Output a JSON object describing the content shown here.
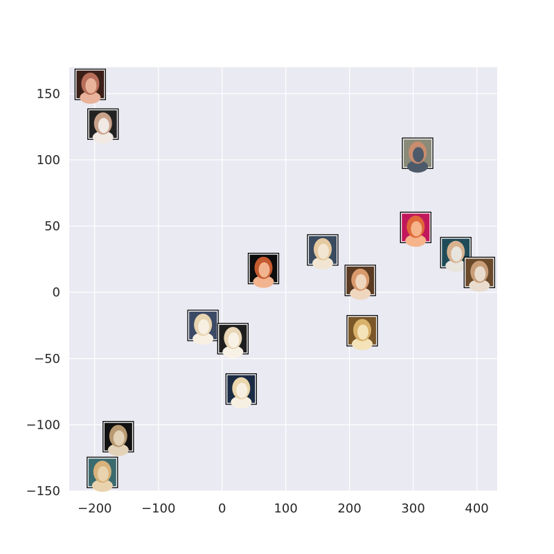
{
  "chart_data": {
    "type": "scatter",
    "title": "",
    "xlabel": "",
    "ylabel": "",
    "xlim": [
      -240,
      432
    ],
    "ylim": [
      -150,
      170
    ],
    "xticks": [
      -200,
      -100,
      0,
      100,
      200,
      300,
      400
    ],
    "yticks": [
      -150,
      -100,
      -50,
      0,
      50,
      100,
      150
    ],
    "xtick_labels": [
      "−200",
      "−100",
      "0",
      "100",
      "200",
      "300",
      "400"
    ],
    "ytick_labels": [
      "−150",
      "−100",
      "−50",
      "0",
      "50",
      "100",
      "150"
    ],
    "grid": true,
    "background": "#eaeaf2",
    "marker": "portrait-thumbnail",
    "points": [
      {
        "x": -207,
        "y": 157,
        "colors": [
          "#3a1f18",
          "#b86f5a",
          "#e8b39a"
        ]
      },
      {
        "x": -187,
        "y": 127,
        "colors": [
          "#222222",
          "#c9a28a",
          "#f1e9e3"
        ]
      },
      {
        "x": 307,
        "y": 105,
        "colors": [
          "#8a8a78",
          "#c98c6e",
          "#4d5a6a"
        ]
      },
      {
        "x": 304,
        "y": 49,
        "colors": [
          "#c2185b",
          "#e0683a",
          "#f5b48a"
        ]
      },
      {
        "x": 158,
        "y": 32,
        "colors": [
          "#3a4b60",
          "#e5c9a0",
          "#f2e6d2"
        ]
      },
      {
        "x": 367,
        "y": 30,
        "colors": [
          "#1f4c58",
          "#d7b28f",
          "#e8e4de"
        ]
      },
      {
        "x": 65,
        "y": 18,
        "colors": [
          "#0d0d0d",
          "#c45a2e",
          "#f2b38f"
        ]
      },
      {
        "x": 217,
        "y": 9,
        "colors": [
          "#5a3a22",
          "#d89a6c",
          "#efd6bf"
        ]
      },
      {
        "x": 404,
        "y": 15,
        "colors": [
          "#6b4a2b",
          "#c89d78",
          "#e9dccf"
        ]
      },
      {
        "x": 220,
        "y": -29,
        "colors": [
          "#7a5628",
          "#d9b16a",
          "#f4e2b8"
        ]
      },
      {
        "x": -30,
        "y": -25,
        "colors": [
          "#3c4a66",
          "#e8d4b0",
          "#f7efe2"
        ]
      },
      {
        "x": 17,
        "y": -35,
        "colors": [
          "#1e1e1e",
          "#e9d7b8",
          "#f8f2e6"
        ]
      },
      {
        "x": 30,
        "y": -73,
        "colors": [
          "#1b2b44",
          "#ead6ad",
          "#f7f0e2"
        ]
      },
      {
        "x": -163,
        "y": -109,
        "colors": [
          "#111111",
          "#b89a72",
          "#e2d2b8"
        ]
      },
      {
        "x": -188,
        "y": -136,
        "colors": [
          "#3b6b6f",
          "#d8b27a",
          "#e9d3ae"
        ]
      }
    ]
  }
}
